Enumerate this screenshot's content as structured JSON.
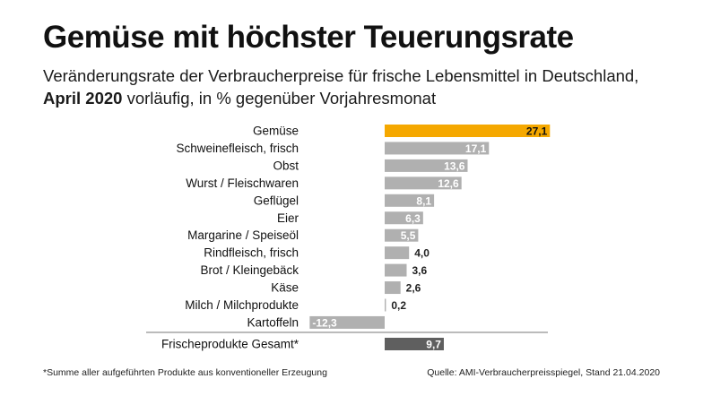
{
  "title": "Gemüse mit höchster Teuerungsrate",
  "subtitle": {
    "line1": "Veränderungsrate der Verbraucherpreise für frische Lebensmittel in Deutschland,",
    "line2_bold": "April 2020",
    "line2_rest": " vorläufig, in % gegenüber Vorjahresmonat"
  },
  "footnote": "*Summe aller aufgeführten Produkte aus konventioneller Erzeugung",
  "source": "Quelle: AMI-Verbraucherpreisspiegel, Stand 21.04.2020",
  "colors": {
    "highlight": "#f5a800",
    "bar": "#b0b0b0",
    "total": "#5f5f5f",
    "separator": "#777777"
  },
  "chart_data": {
    "type": "bar",
    "orientation": "horizontal",
    "categories": [
      "Gemüse",
      "Schweinefleisch, frisch",
      "Obst",
      "Wurst / Fleischwaren",
      "Geflügel",
      "Eier",
      "Margarine / Speiseöl",
      "Rindfleisch, frisch",
      "Brot / Kleingebäck",
      "Käse",
      "Milch / Milchprodukte",
      "Kartoffeln"
    ],
    "values": [
      27.1,
      17.1,
      13.6,
      12.6,
      8.1,
      6.3,
      5.5,
      4.0,
      3.6,
      2.6,
      0.2,
      -12.3
    ],
    "value_labels": [
      "27,1",
      "17,1",
      "13,6",
      "12,6",
      "8,1",
      "6,3",
      "5,5",
      "4,0",
      "3,6",
      "2,6",
      "0,2",
      "-12,3"
    ],
    "highlight_index": 0,
    "total": {
      "label": "Frischeprodukte Gesamt*",
      "value": 9.7,
      "value_label": "9,7"
    }
  }
}
